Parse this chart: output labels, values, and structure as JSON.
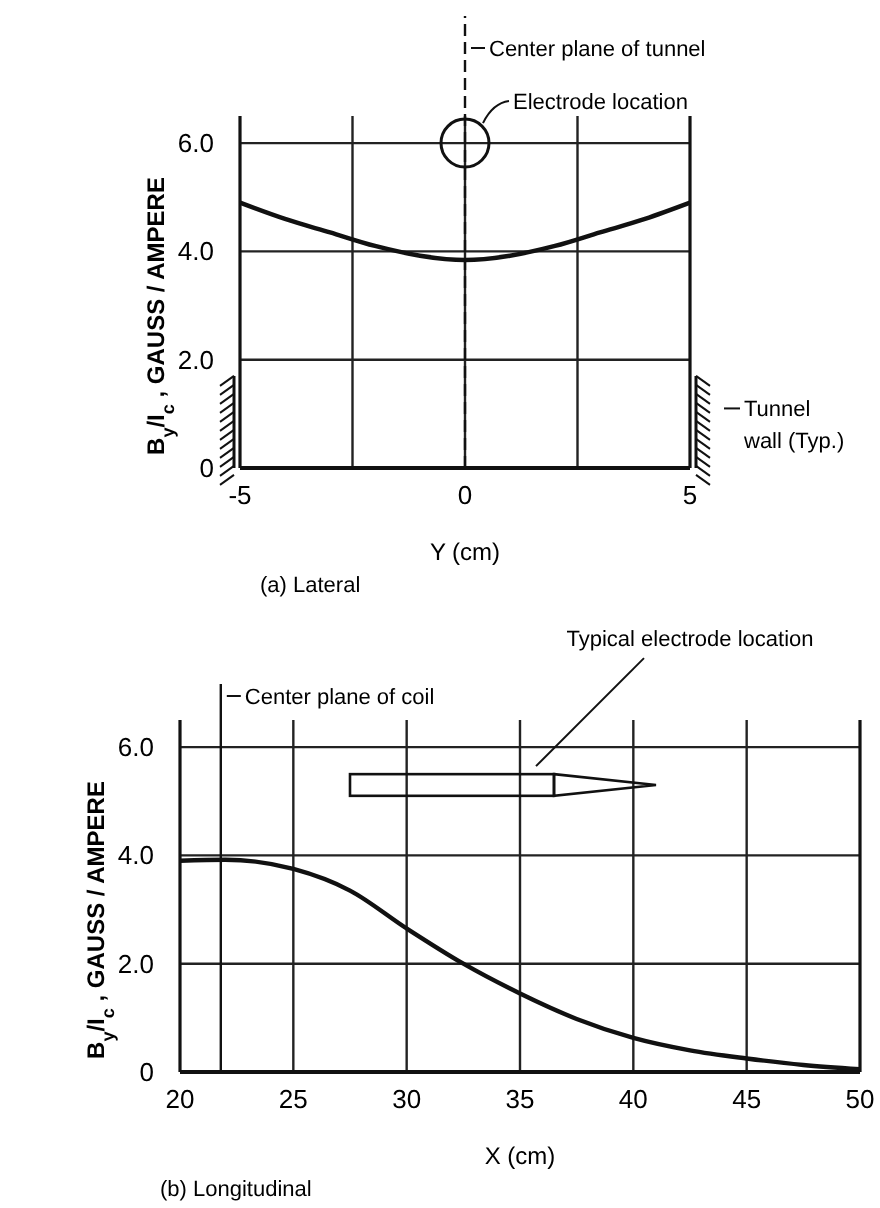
{
  "chart_data": [
    {
      "type": "line",
      "xlabel": "Y (cm)",
      "ylabel": "B$_{y}$/I$_{c}$ , GAUSS / AMPERE",
      "x": [
        -5,
        -4,
        -3,
        -2,
        -1,
        0,
        1,
        2,
        3,
        4,
        5
      ],
      "series": [
        {
          "color": "#111111",
          "values": [
            4.9,
            4.6,
            4.35,
            4.1,
            3.92,
            3.84,
            3.92,
            4.1,
            4.35,
            4.6,
            4.9
          ]
        }
      ],
      "xlim": [
        -5,
        5
      ],
      "ylim": [
        0,
        6.5
      ],
      "xticks": [
        -5,
        {
          "value": -2.5,
          "label": null
        },
        0,
        {
          "value": 2.5,
          "label": null
        },
        5
      ],
      "yticks": [
        0,
        {
          "value": 2,
          "label": "2.0"
        },
        {
          "value": 4,
          "label": "4.0"
        },
        {
          "value": 6,
          "label": "6.0"
        }
      ],
      "grid": true,
      "line_style": "solid",
      "marker": "none",
      "ref_lines": [
        {
          "axis": "x",
          "value": 0,
          "label": "Center plane of tunnel",
          "line_style": "dashed"
        }
      ],
      "annotations": [
        {
          "text": "Electrode location",
          "x": 0,
          "y": 6
        },
        "Tunnel wall (Typ.)",
        "(a) Lateral"
      ]
    },
    {
      "type": "line",
      "xlabel": "X (cm)",
      "ylabel": "B$_{y}$/I$_{c}$ , GAUSS / AMPERE",
      "x": [
        20,
        22,
        25,
        27.5,
        30,
        32.5,
        35,
        37.5,
        40,
        42.5,
        45,
        47.5,
        50
      ],
      "series": [
        {
          "color": "#111111",
          "values": [
            3.9,
            3.92,
            3.75,
            3.35,
            2.65,
            2.0,
            1.45,
            0.98,
            0.63,
            0.4,
            0.25,
            0.13,
            0.05
          ]
        }
      ],
      "xlim": [
        20,
        50
      ],
      "ylim": [
        0,
        6.5
      ],
      "xticks": [
        20,
        25,
        30,
        35,
        40,
        45,
        50
      ],
      "yticks": [
        0,
        {
          "value": 2,
          "label": "2.0"
        },
        {
          "value": 4,
          "label": "4.0"
        },
        {
          "value": 6,
          "label": "6.0"
        }
      ],
      "grid": true,
      "line_style": "solid",
      "marker": "none",
      "ref_lines": [
        {
          "axis": "x",
          "value": 21.8,
          "label": "Center plane of coil",
          "line_style": "solid"
        }
      ],
      "annotations": [
        "Typical electrode location",
        "(b) Longitudinal"
      ]
    }
  ]
}
